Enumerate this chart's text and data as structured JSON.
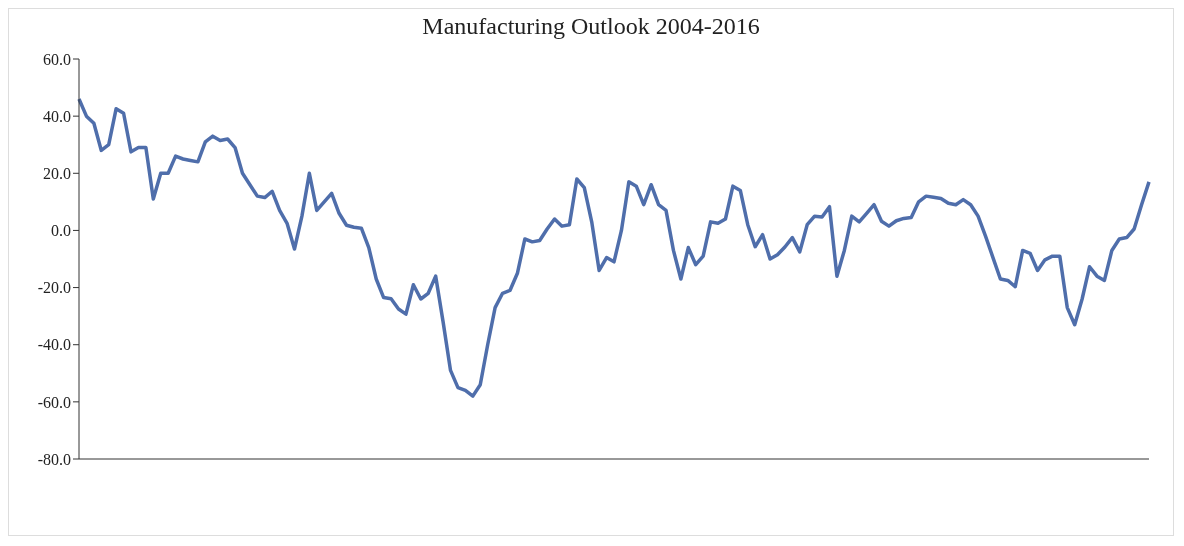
{
  "chart_data": {
    "type": "line",
    "title": "Manufacturing Outlook 2004-2016",
    "categories": [
      null,
      null,
      null,
      null,
      null,
      null,
      null,
      null,
      null,
      null,
      null,
      null,
      null,
      null,
      null,
      null,
      null,
      null,
      null,
      null,
      null,
      null,
      null,
      null,
      null,
      null,
      null,
      null,
      null,
      null,
      null,
      null,
      null,
      null,
      null,
      null,
      null,
      null,
      null,
      null,
      null,
      null,
      null,
      null,
      null,
      null,
      null,
      null,
      null,
      null,
      null,
      null,
      null,
      null,
      null,
      null,
      null,
      null,
      null,
      null,
      null,
      null,
      null,
      null,
      null,
      null,
      null,
      null,
      null,
      null,
      null,
      null,
      null,
      null,
      null,
      null,
      null,
      null,
      null,
      null,
      null,
      null,
      null,
      null,
      null,
      null,
      null,
      null,
      null,
      null,
      null,
      null,
      null,
      null,
      null,
      null,
      null,
      null,
      null,
      null,
      null,
      null,
      null,
      null,
      null,
      null,
      null,
      null,
      null,
      null,
      null,
      null,
      null,
      null,
      null,
      null,
      null,
      null,
      null,
      null,
      null,
      null,
      null,
      null,
      null,
      null,
      null,
      null,
      null,
      null,
      null,
      null,
      null,
      null,
      null,
      null,
      null,
      null,
      null,
      null,
      null,
      null,
      null,
      null,
      null
    ],
    "series": [
      {
        "color": "#4f6eab",
        "values": [
          46,
          40,
          37.5,
          28,
          30,
          42.6,
          41,
          27.5,
          29,
          29,
          11,
          20,
          20,
          26,
          25,
          24.5,
          24,
          31,
          33,
          31.5,
          32,
          29,
          20,
          16,
          12,
          11.5,
          13.7,
          7,
          2.5,
          -6.5,
          5,
          20,
          7,
          10,
          13,
          6,
          1.8,
          1.1,
          0.8,
          -6,
          -17,
          -23.5,
          -23.9,
          -27.5,
          -29.3,
          -19,
          -24,
          -22,
          -16,
          -32,
          -49,
          -55,
          -56,
          -58,
          -54,
          -40,
          -27,
          -22,
          -21,
          -15,
          -3,
          -4,
          -3.5,
          0.5,
          4,
          1.5,
          2,
          18,
          15,
          3,
          -14,
          -9.5,
          -11,
          0,
          17,
          15.5,
          9,
          16,
          9,
          7,
          -7,
          -17,
          -6,
          -12,
          -9,
          3,
          2.5,
          4,
          15.5,
          14,
          2,
          -5.7,
          -1.5,
          -10,
          -8.5,
          -5.8,
          -2.5,
          -7.5,
          2,
          5,
          4.7,
          8.3,
          -16,
          -7,
          5,
          3,
          6,
          9,
          3.2,
          1.5,
          3.4,
          4.2,
          4.5,
          10,
          12,
          11.6,
          11.2,
          9.5,
          9,
          10.8,
          9,
          5,
          -2,
          -9.5,
          -17,
          -17.5,
          -19.7,
          -7,
          -8,
          -14,
          -10.3,
          -9,
          -9,
          -27,
          -33,
          -24,
          -12.7,
          -16,
          -17.5,
          -7,
          -3,
          -2.5,
          0.5,
          9,
          17
        ]
      }
    ],
    "ylim": [
      -80,
      60
    ],
    "yticks": [
      {
        "value": -80,
        "label": "-80.0"
      },
      {
        "value": -60,
        "label": "-60.0"
      },
      {
        "value": -40,
        "label": "-40.0"
      },
      {
        "value": -20,
        "label": "-20.0"
      },
      {
        "value": 0,
        "label": "0.0"
      },
      {
        "value": 20,
        "label": "20.0"
      },
      {
        "value": 40,
        "label": "40.0"
      },
      {
        "value": 60,
        "label": "60.0"
      }
    ],
    "tick_labels": "y",
    "grid": false,
    "legend": false,
    "marker": "none",
    "line_style": "solid"
  }
}
